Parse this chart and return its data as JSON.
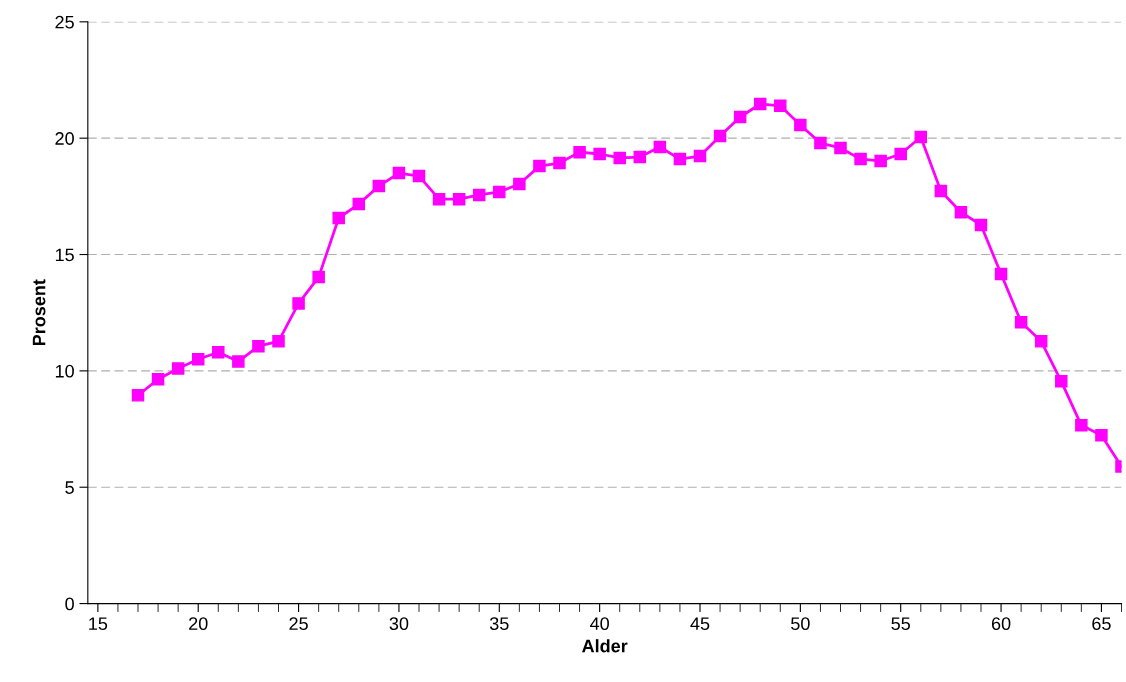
{
  "chart_data": {
    "type": "line",
    "xlabel": "Alder",
    "ylabel": "Prosent",
    "x": [
      17,
      18,
      19,
      20,
      21,
      22,
      23,
      24,
      25,
      26,
      27,
      28,
      29,
      30,
      31,
      32,
      33,
      34,
      35,
      36,
      37,
      38,
      39,
      40,
      41,
      42,
      43,
      44,
      45,
      46,
      47,
      48,
      49,
      50,
      51,
      52,
      53,
      54,
      55,
      56,
      57,
      58,
      59,
      60,
      61,
      62,
      63,
      64,
      65,
      66
    ],
    "series": [
      {
        "color": "#ff00ff",
        "values": [
          8.95,
          9.64,
          10.1,
          10.5,
          10.8,
          10.4,
          11.06,
          11.27,
          12.9,
          14.03,
          16.57,
          17.17,
          17.94,
          18.5,
          18.37,
          17.38,
          17.38,
          17.56,
          17.69,
          18.03,
          18.8,
          18.93,
          19.4,
          19.32,
          19.15,
          19.19,
          19.62,
          19.1,
          19.23,
          20.09,
          20.91,
          21.47,
          21.39,
          20.57,
          19.79,
          19.58,
          19.1,
          19.02,
          19.32,
          20.05,
          17.73,
          16.82,
          16.27,
          14.16,
          12.09,
          11.27,
          9.55,
          7.66,
          7.23,
          5.89
        ]
      }
    ],
    "xlim": [
      14.5,
      66
    ],
    "xticks": [
      15,
      20,
      25,
      30,
      35,
      40,
      45,
      50,
      55,
      60,
      65
    ],
    "ylim": [
      0,
      25
    ],
    "yticks": [
      0,
      5,
      10,
      15,
      20,
      25
    ],
    "grid": "y",
    "marker": "square",
    "line_style": "solid"
  }
}
